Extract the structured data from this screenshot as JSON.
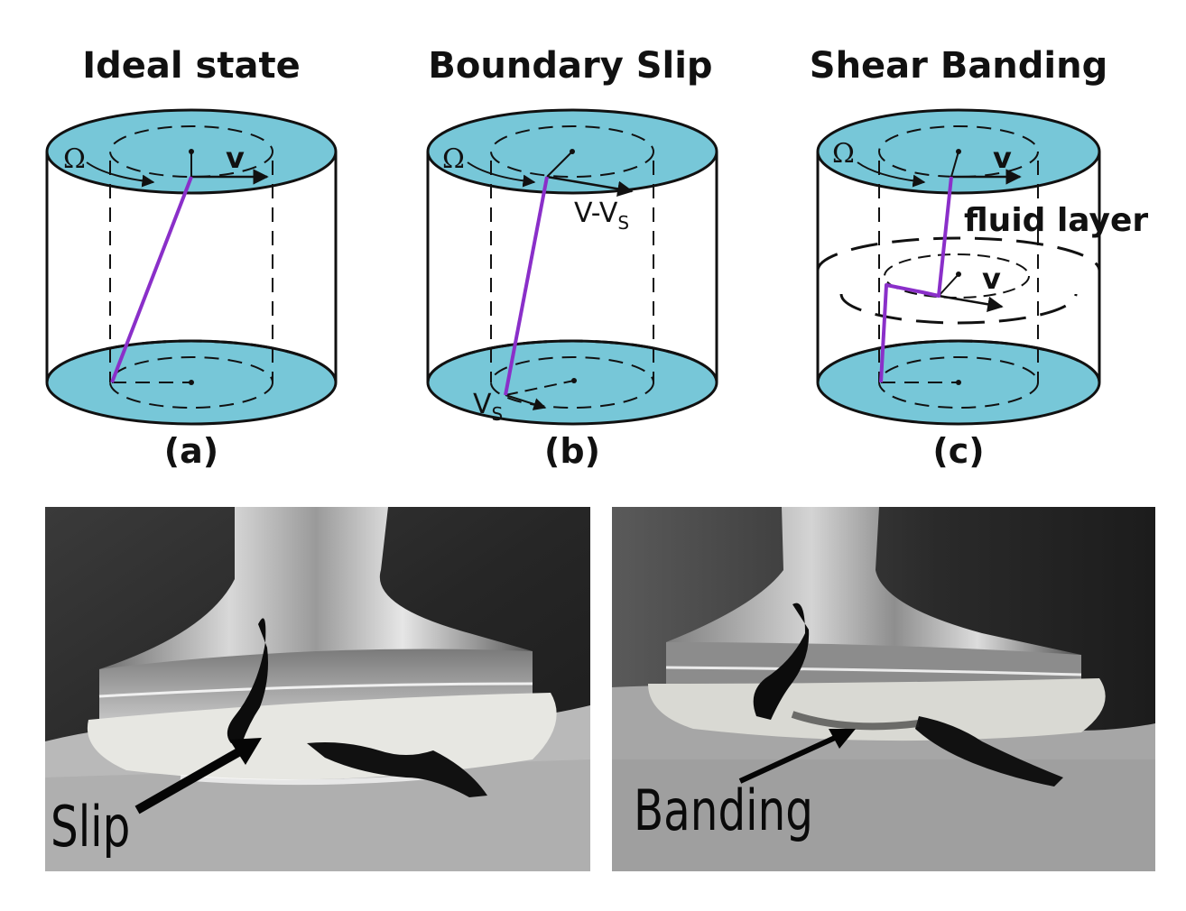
{
  "titles": [
    "Ideal state",
    "Boundary Slip",
    "Shear Banding"
  ],
  "panel_labels": [
    "(a)",
    "(b)",
    "(c)"
  ],
  "symbols": {
    "omega": "Ω",
    "v": "v",
    "v_minus_vs": "V-V",
    "vs_sub": "S",
    "vs": "V",
    "fluid_layer": "fluid layer"
  },
  "photos": {
    "left_caption": "Slip",
    "right_caption": "Banding"
  },
  "colors": {
    "plate": "#77c7d8",
    "velocity_line": "#8a2fc9",
    "stroke": "#111111"
  }
}
